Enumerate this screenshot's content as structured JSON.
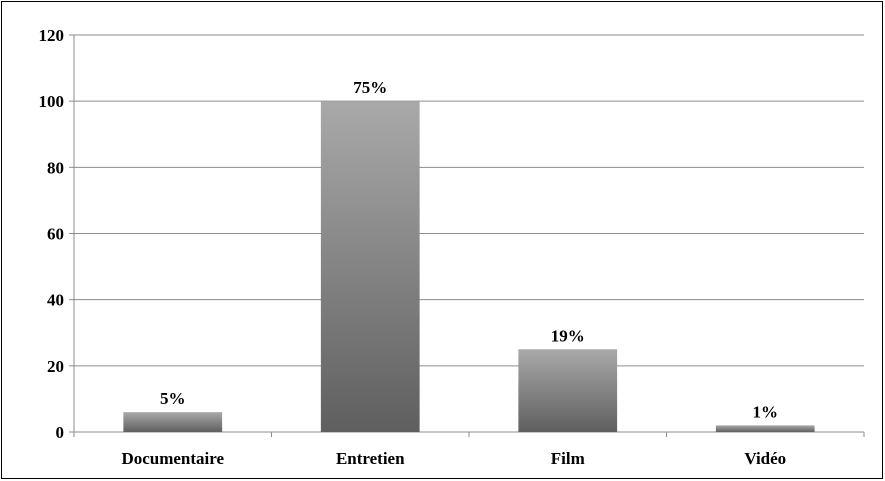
{
  "chart_data": {
    "type": "bar",
    "categories": [
      "Documentaire",
      "Entretien",
      "Film",
      "Vidéo"
    ],
    "values": [
      6,
      100,
      25,
      2
    ],
    "data_labels": [
      "5%",
      "75%",
      "19%",
      "1%"
    ],
    "title": "",
    "xlabel": "",
    "ylabel": "",
    "ylim": [
      0,
      120
    ],
    "yticks": [
      "0",
      "20",
      "40",
      "60",
      "80",
      "100",
      "120"
    ],
    "grid": "horizontal",
    "legend": "none",
    "bar_color_top": "#a9a9a9",
    "bar_color_bottom": "#5f5f5f",
    "grid_color": "#8c8c8c",
    "axis_color": "#8c8c8c"
  }
}
